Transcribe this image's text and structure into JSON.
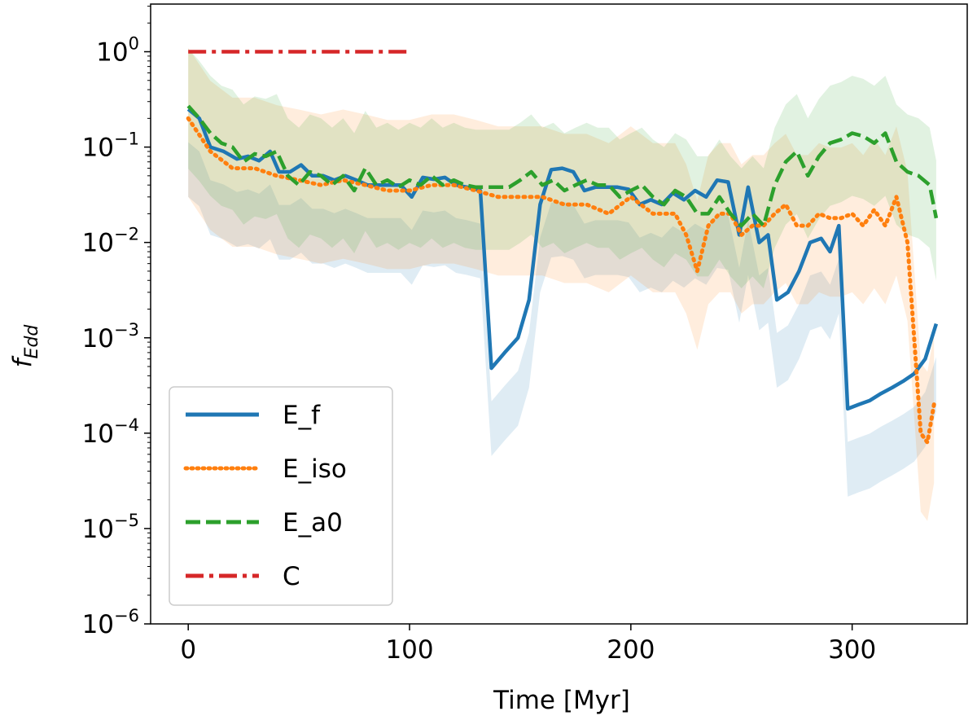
{
  "chart_data": {
    "type": "line",
    "title": "",
    "xlabel": "Time   [Myr]",
    "ylabel": "f_Edd",
    "yscale": "log",
    "xlim": [
      -17,
      352
    ],
    "ylim": [
      1e-06,
      3.16
    ],
    "xticks": [
      0,
      100,
      200,
      300
    ],
    "yticks": [
      {
        "value": 1,
        "base": "10",
        "exp": "0"
      },
      {
        "value": 0.1,
        "base": "10",
        "exp": "−1"
      },
      {
        "value": 0.01,
        "base": "10",
        "exp": "−2"
      },
      {
        "value": 0.001,
        "base": "10",
        "exp": "−3"
      },
      {
        "value": 0.0001,
        "base": "10",
        "exp": "−4"
      },
      {
        "value": 1e-05,
        "base": "10",
        "exp": "−5"
      },
      {
        "value": 1e-06,
        "base": "10",
        "exp": "−6"
      }
    ],
    "legend_position": "lower-left",
    "series": [
      {
        "name": "E_f",
        "color": "#1f77b4",
        "style": "solid",
        "x": [
          0,
          5,
          10,
          16,
          22,
          27,
          32,
          37,
          41,
          46,
          51,
          56,
          61,
          66,
          71,
          76,
          81,
          86,
          91,
          96,
          101,
          106,
          111,
          116,
          121,
          126,
          132,
          137,
          143,
          149,
          154,
          159,
          164,
          169,
          174,
          179,
          184,
          189,
          194,
          199,
          204,
          209,
          214,
          219,
          224,
          229,
          234,
          239,
          244,
          249,
          253,
          258,
          262,
          266,
          271,
          276,
          281,
          286,
          290,
          294,
          298,
          303,
          308,
          313,
          318,
          323,
          328,
          333,
          338
        ],
        "y": [
          0.25,
          0.2,
          0.1,
          0.09,
          0.075,
          0.08,
          0.072,
          0.09,
          0.055,
          0.055,
          0.065,
          0.05,
          0.05,
          0.045,
          0.05,
          0.045,
          0.04,
          0.04,
          0.04,
          0.04,
          0.03,
          0.048,
          0.046,
          0.048,
          0.04,
          0.038,
          0.035,
          0.00048,
          0.0007,
          0.001,
          0.0025,
          0.025,
          0.058,
          0.06,
          0.055,
          0.035,
          0.038,
          0.038,
          0.038,
          0.036,
          0.025,
          0.028,
          0.025,
          0.033,
          0.028,
          0.035,
          0.03,
          0.045,
          0.043,
          0.012,
          0.038,
          0.01,
          0.012,
          0.0025,
          0.003,
          0.005,
          0.01,
          0.011,
          0.008,
          0.015,
          0.00018,
          0.0002,
          0.00022,
          0.00026,
          0.0003,
          0.00035,
          0.00042,
          0.0006,
          0.0014
        ],
        "band": [
          0.12,
          0.45
        ]
      },
      {
        "name": "E_iso",
        "color": "#ff7f0e",
        "style": "dotted",
        "x": [
          0,
          10,
          20,
          30,
          40,
          50,
          60,
          70,
          80,
          90,
          100,
          110,
          120,
          130,
          140,
          150,
          160,
          170,
          180,
          190,
          200,
          210,
          220,
          225,
          230,
          235,
          240,
          245,
          250,
          255,
          260,
          265,
          270,
          275,
          280,
          285,
          290,
          295,
          300,
          305,
          310,
          315,
          320,
          325,
          328,
          331,
          334,
          337
        ],
        "y": [
          0.2,
          0.09,
          0.06,
          0.06,
          0.05,
          0.045,
          0.04,
          0.045,
          0.04,
          0.035,
          0.035,
          0.04,
          0.04,
          0.035,
          0.03,
          0.03,
          0.03,
          0.025,
          0.025,
          0.02,
          0.03,
          0.02,
          0.02,
          0.012,
          0.005,
          0.015,
          0.02,
          0.02,
          0.012,
          0.015,
          0.015,
          0.02,
          0.025,
          0.015,
          0.015,
          0.02,
          0.018,
          0.018,
          0.02,
          0.015,
          0.022,
          0.015,
          0.03,
          0.01,
          0.001,
          0.0001,
          8e-05,
          0.0002
        ],
        "band": [
          0.15,
          5.5
        ]
      },
      {
        "name": "E_a0",
        "color": "#2ca02c",
        "style": "dashed",
        "x": [
          0,
          5,
          10,
          15,
          20,
          25,
          30,
          35,
          40,
          45,
          50,
          55,
          60,
          65,
          70,
          75,
          80,
          85,
          90,
          95,
          100,
          105,
          110,
          115,
          120,
          125,
          130,
          135,
          140,
          145,
          150,
          155,
          160,
          165,
          170,
          175,
          180,
          185,
          190,
          195,
          200,
          205,
          210,
          215,
          220,
          225,
          230,
          235,
          240,
          245,
          250,
          255,
          260,
          265,
          270,
          275,
          280,
          285,
          290,
          295,
          300,
          305,
          310,
          315,
          320,
          325,
          330,
          335,
          338
        ],
        "y": [
          0.27,
          0.2,
          0.14,
          0.11,
          0.1,
          0.07,
          0.085,
          0.08,
          0.09,
          0.05,
          0.04,
          0.055,
          0.05,
          0.04,
          0.05,
          0.035,
          0.06,
          0.04,
          0.045,
          0.038,
          0.045,
          0.04,
          0.05,
          0.04,
          0.045,
          0.04,
          0.038,
          0.038,
          0.038,
          0.038,
          0.045,
          0.055,
          0.04,
          0.045,
          0.035,
          0.04,
          0.045,
          0.04,
          0.04,
          0.03,
          0.035,
          0.04,
          0.03,
          0.025,
          0.035,
          0.03,
          0.02,
          0.02,
          0.03,
          0.02,
          0.015,
          0.02,
          0.015,
          0.04,
          0.07,
          0.09,
          0.05,
          0.08,
          0.11,
          0.12,
          0.14,
          0.13,
          0.11,
          0.14,
          0.07,
          0.055,
          0.05,
          0.04,
          0.018
        ],
        "band": [
          0.22,
          4.0
        ]
      },
      {
        "name": "C",
        "color": "#d62728",
        "style": "dashdot",
        "x": [
          0,
          100
        ],
        "y": [
          1.0,
          1.0
        ]
      }
    ]
  }
}
